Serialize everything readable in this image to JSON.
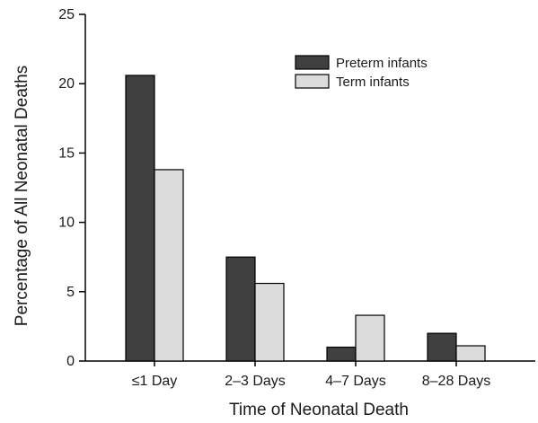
{
  "chart_data": {
    "type": "bar",
    "xlabel": "Time of Neonatal Death",
    "ylabel": "Percentage of All Neonatal Deaths",
    "ylim": [
      0,
      25
    ],
    "yticks": [
      0,
      5,
      10,
      15,
      20,
      25
    ],
    "categories": [
      "≤1 Day",
      "2–3 Days",
      "4–7 Days",
      "8–28 Days"
    ],
    "series": [
      {
        "name": "Preterm infants",
        "values": [
          20.6,
          7.5,
          1.0,
          2.0
        ],
        "color": "#3f3f3f"
      },
      {
        "name": "Term infants",
        "values": [
          13.8,
          5.6,
          3.3,
          1.1
        ],
        "color": "#dcdcdc"
      }
    ],
    "legend_position": "top-right",
    "grid": false
  }
}
